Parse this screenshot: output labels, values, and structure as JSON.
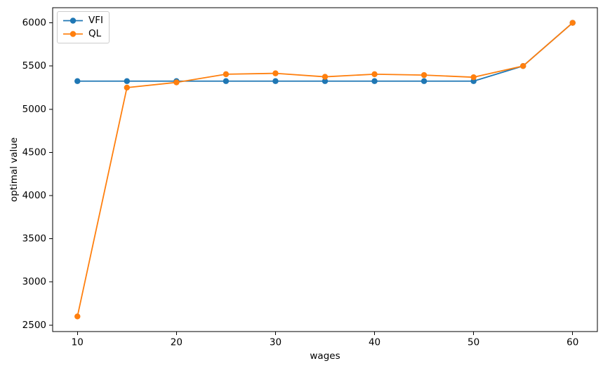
{
  "figure": {
    "background": "#ffffff",
    "spine_color": "#000000"
  },
  "chart_data": {
    "type": "line",
    "title": "",
    "xlabel": "wages",
    "ylabel": "optimal value",
    "x": [
      10,
      15,
      20,
      25,
      30,
      35,
      40,
      45,
      50,
      55,
      60
    ],
    "series": [
      {
        "name": "VFI",
        "color": "#1f77b4",
        "marker": "circle",
        "values": [
          5325,
          5325,
          5325,
          5325,
          5325,
          5325,
          5325,
          5325,
          5325,
          5500,
          6000
        ]
      },
      {
        "name": "QL",
        "color": "#ff7f0e",
        "marker": "circle",
        "values": [
          2600,
          5250,
          5310,
          5405,
          5415,
          5375,
          5405,
          5395,
          5370,
          5500,
          6000
        ]
      }
    ],
    "xticks": [
      10,
      20,
      30,
      40,
      50,
      60
    ],
    "yticks": [
      2500,
      3000,
      3500,
      4000,
      4500,
      5000,
      5500,
      6000
    ],
    "xlim": [
      7.5,
      62.5
    ],
    "ylim": [
      2425,
      6175
    ],
    "grid": false,
    "legend": {
      "position": "upper left",
      "entries": [
        "VFI",
        "QL"
      ]
    }
  }
}
